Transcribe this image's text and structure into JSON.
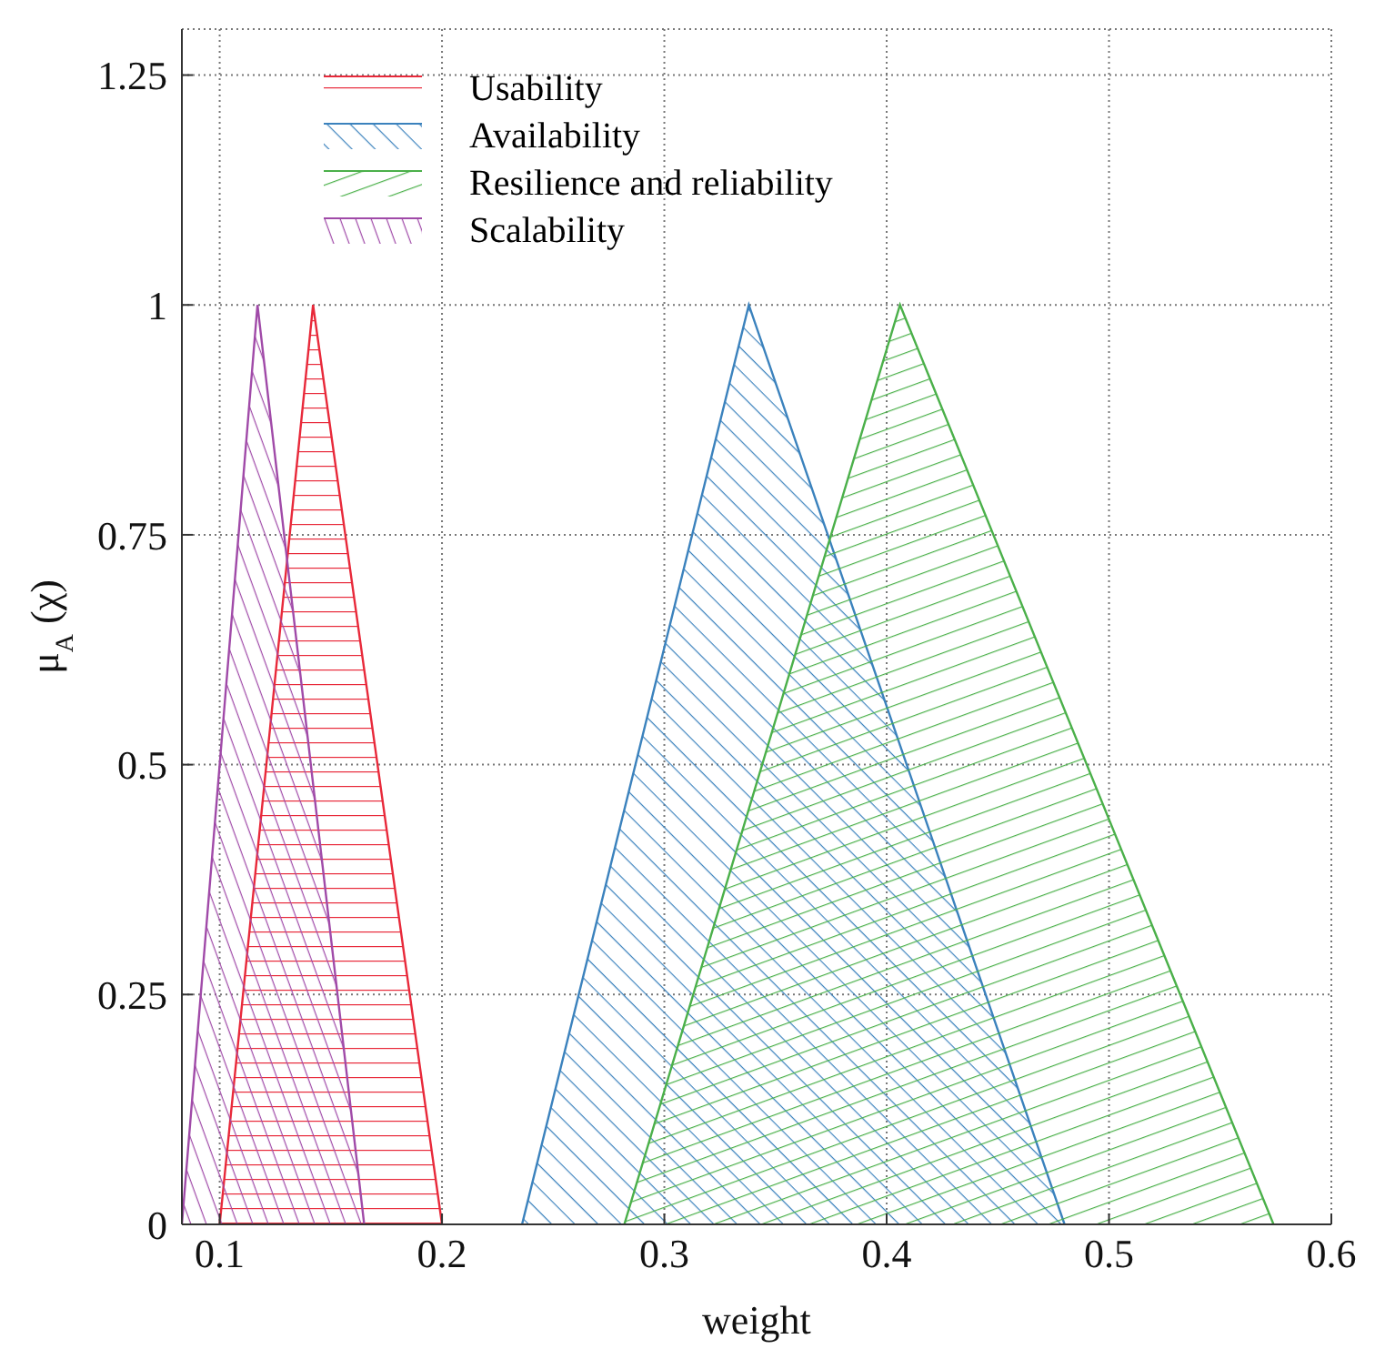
{
  "chart_data": {
    "type": "area",
    "xlabel": "weight",
    "ylabel": "μ$_{A}$ (χ)",
    "xlim": [
      0.083,
      0.6
    ],
    "xticks": [
      0.1,
      0.2,
      0.3,
      0.4,
      0.5,
      0.6
    ],
    "ylim": [
      0,
      1.3
    ],
    "yticks": [
      0,
      0.25,
      0.5,
      0.75,
      1,
      1.25
    ],
    "grid": true,
    "legend": "top left",
    "series": [
      {
        "name": "Usability",
        "color": "#e8293a",
        "x": [
          0.1,
          0.142,
          0.2
        ],
        "values": [
          0,
          1,
          0
        ]
      },
      {
        "name": "Availability",
        "color": "#3b82bd",
        "x": [
          0.236,
          0.338,
          0.48
        ],
        "values": [
          0,
          1,
          0
        ]
      },
      {
        "name": "Resilience and reliability",
        "color": "#4bb04a",
        "x": [
          0.282,
          0.406,
          0.574
        ],
        "values": [
          0,
          1,
          0
        ]
      },
      {
        "name": "Scalability",
        "color": "#a04aa8",
        "x": [
          0.083,
          0.117,
          0.165
        ],
        "values": [
          0,
          1,
          0
        ]
      }
    ]
  }
}
